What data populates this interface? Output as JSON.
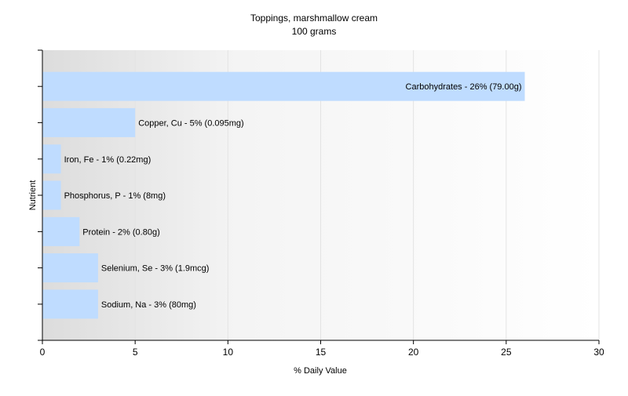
{
  "chart_data": {
    "type": "bar",
    "orientation": "horizontal",
    "title": "Toppings, marshmallow cream",
    "subtitle": "100 grams",
    "xlabel": "% Daily Value",
    "ylabel": "Nutrient",
    "xlim": [
      0,
      30
    ],
    "xticks": [
      0,
      5,
      10,
      15,
      20,
      25,
      30
    ],
    "grid": true,
    "legend": "none",
    "bar_color": "#bfdcff",
    "categories": [
      "Carbohydrates",
      "Copper, Cu",
      "Iron, Fe",
      "Phosphorus, P",
      "Protein",
      "Selenium, Se",
      "Sodium, Na"
    ],
    "values": [
      26,
      5,
      1,
      1,
      2,
      3,
      3
    ],
    "labels": [
      "Carbohydrates - 26% (79.00g)",
      "Copper, Cu - 5% (0.095mg)",
      "Iron, Fe - 1% (0.22mg)",
      "Phosphorus, P - 1% (8mg)",
      "Protein - 2% (0.80g)",
      "Selenium, Se - 3% (1.9mcg)",
      "Sodium, Na - 3% (80mg)"
    ]
  }
}
